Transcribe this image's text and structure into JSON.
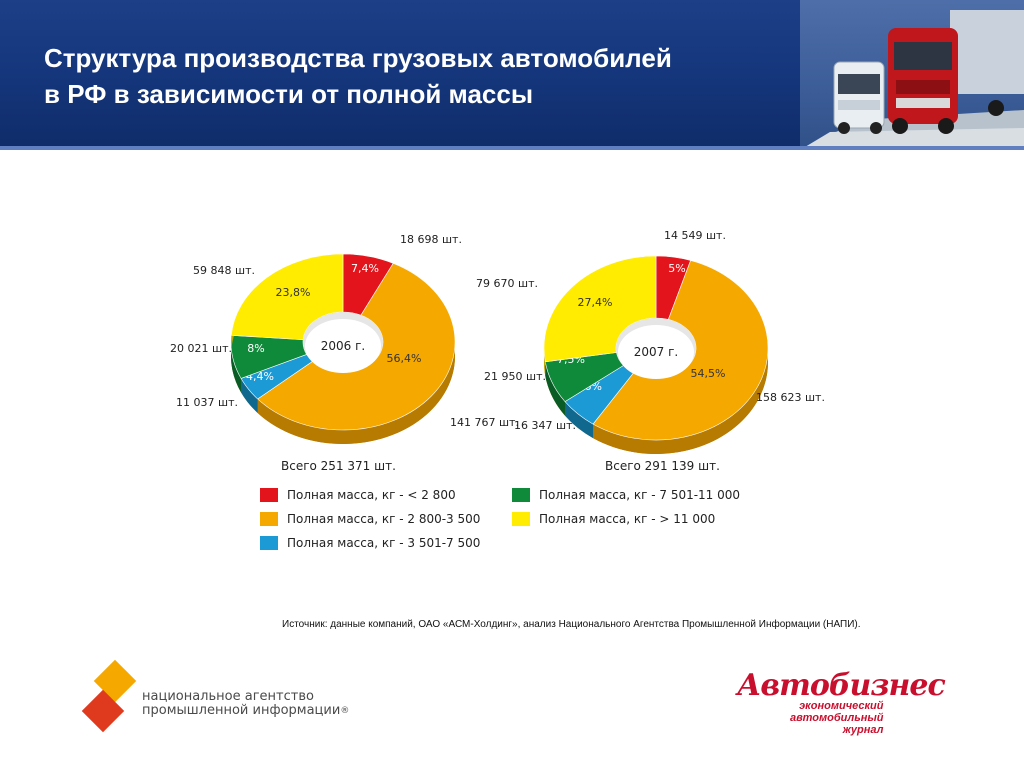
{
  "header": {
    "title_line1": "Структура производства грузовых автомобилей",
    "title_line2": "в РФ в зависимости от полной массы"
  },
  "colors": {
    "red": "#e3141b",
    "orange": "#f4a800",
    "blue": "#1b9ad6",
    "green": "#0f8a3a",
    "yellow": "#ffec00"
  },
  "chart_data": [
    {
      "type": "pie",
      "center_label": "2006 г.",
      "total_label": "Всего 251 371 шт.",
      "slices": [
        {
          "category": "Полная масса, кг - < 2 800",
          "color": "red",
          "percent": 7.4,
          "pct_label": "7,4%",
          "count_label": "18 698 шт."
        },
        {
          "category": "Полная масса, кг - 2 800-3 500",
          "color": "orange",
          "percent": 56.4,
          "pct_label": "56,4%",
          "count_label": "141 767 шт."
        },
        {
          "category": "Полная масса, кг - 3 501-7 500",
          "color": "blue",
          "percent": 4.4,
          "pct_label": "4,4%",
          "count_label": "11 037 шт."
        },
        {
          "category": "Полная масса, кг - 7 501-11 000",
          "color": "green",
          "percent": 8.0,
          "pct_label": "8%",
          "count_label": "20 021 шт."
        },
        {
          "category": "Полная масса, кг - > 11 000",
          "color": "yellow",
          "percent": 23.8,
          "pct_label": "23,8%",
          "count_label": "59 848 шт."
        }
      ]
    },
    {
      "type": "pie",
      "center_label": "2007 г.",
      "total_label": "Всего 291 139 шт.",
      "slices": [
        {
          "category": "Полная масса, кг - < 2 800",
          "color": "red",
          "percent": 5.0,
          "pct_label": "5%",
          "count_label": "14 549 шт."
        },
        {
          "category": "Полная масса, кг - 2 800-3 500",
          "color": "orange",
          "percent": 54.5,
          "pct_label": "54,5%",
          "count_label": "158 623 шт."
        },
        {
          "category": "Полная масса, кг - 3 501-7 500",
          "color": "blue",
          "percent": 5.6,
          "pct_label": "5,6%",
          "count_label": "16 347 шт."
        },
        {
          "category": "Полная масса, кг - 7 501-11 000",
          "color": "green",
          "percent": 7.5,
          "pct_label": "7,5%",
          "count_label": "21 950 шт."
        },
        {
          "category": "Полная масса, кг - > 11 000",
          "color": "yellow",
          "percent": 27.4,
          "pct_label": "27,4%",
          "count_label": "79 670 шт."
        }
      ]
    }
  ],
  "legend": [
    {
      "label": "Полная масса, кг - < 2 800",
      "color": "red"
    },
    {
      "label": "Полная масса, кг - 2 800-3 500",
      "color": "orange"
    },
    {
      "label": "Полная масса, кг - 3 501-7 500",
      "color": "blue"
    },
    {
      "label": "Полная масса, кг - 7 501-11 000",
      "color": "green"
    },
    {
      "label": "Полная масса, кг - > 11 000",
      "color": "yellow"
    }
  ],
  "footer": {
    "source": "Источник: данные компаний, ОАО «АСМ-Холдинг», анализ Национального Агентства Промышленной Информации (НАПИ).",
    "napi_line1": "национальное агентство",
    "napi_line2": "промышленной информации",
    "napi_registered": "®",
    "ab_logo": "Автобизнес",
    "ab_sub_line1": "экономический",
    "ab_sub_line2": "автомобильный",
    "ab_sub_line3": "журнал"
  }
}
